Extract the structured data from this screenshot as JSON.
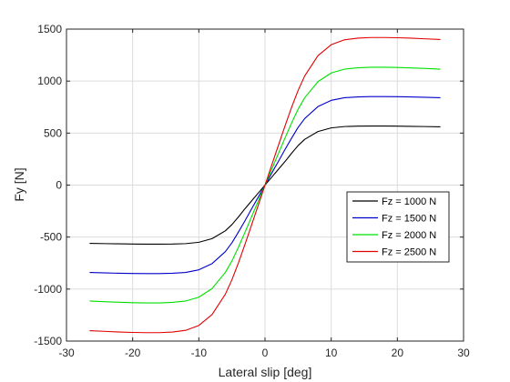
{
  "chart_data": {
    "type": "line",
    "xlabel": "Lateral slip [deg]",
    "ylabel": "Fy [N]",
    "xlim": [
      -30,
      30
    ],
    "ylim": [
      -1500,
      1500
    ],
    "xticks": [
      -30,
      -20,
      -10,
      0,
      10,
      20,
      30
    ],
    "yticks": [
      -1500,
      -1000,
      -500,
      0,
      500,
      1000,
      1500
    ],
    "xtick_labels": [
      "-30",
      "-20",
      "-10",
      "0",
      "10",
      "20",
      "30"
    ],
    "ytick_labels": [
      "-1500",
      "-1000",
      "-500",
      "0",
      "500",
      "1000",
      "1500"
    ],
    "grid": true,
    "legend_position": "right",
    "series": [
      {
        "name": "Fz = 1000 N",
        "color": "#000000",
        "x": [
          -26.5,
          -24,
          -22,
          -20,
          -18,
          -16,
          -14,
          -12,
          -10,
          -8,
          -6,
          -5,
          -4,
          -3,
          -2,
          -1,
          0,
          1,
          2,
          3,
          4,
          5,
          6,
          8,
          10,
          12,
          14,
          16,
          18,
          20,
          22,
          24,
          26.5
        ],
        "y": [
          -560,
          -563,
          -565,
          -567,
          -568,
          -568,
          -567,
          -563,
          -550,
          -515,
          -440,
          -380,
          -305,
          -225,
          -150,
          -75,
          0,
          75,
          150,
          225,
          305,
          380,
          440,
          515,
          550,
          563,
          567,
          568,
          568,
          567,
          565,
          563,
          560
        ]
      },
      {
        "name": "Fz = 1500 N",
        "color": "#0000cc",
        "x": [
          -26.5,
          -24,
          -22,
          -20,
          -18,
          -16,
          -14,
          -12,
          -10,
          -8,
          -6,
          -5,
          -4,
          -3,
          -2,
          -1,
          0,
          1,
          2,
          3,
          4,
          5,
          6,
          8,
          10,
          12,
          14,
          16,
          18,
          20,
          22,
          24,
          26.5
        ],
        "y": [
          -840,
          -845,
          -848,
          -850,
          -851,
          -851,
          -848,
          -840,
          -815,
          -755,
          -640,
          -555,
          -450,
          -340,
          -225,
          -113,
          0,
          113,
          225,
          340,
          450,
          555,
          640,
          755,
          815,
          840,
          848,
          851,
          851,
          850,
          848,
          845,
          840
        ]
      },
      {
        "name": "Fz = 2000 N",
        "color": "#00e000",
        "x": [
          -26.5,
          -24,
          -22,
          -20,
          -18,
          -16,
          -14,
          -12,
          -10,
          -8,
          -6,
          -5,
          -4,
          -3,
          -2,
          -1,
          0,
          1,
          2,
          3,
          4,
          5,
          6,
          8,
          10,
          12,
          14,
          16,
          18,
          20,
          22,
          24,
          26.5
        ],
        "y": [
          -1115,
          -1122,
          -1127,
          -1131,
          -1133,
          -1133,
          -1128,
          -1115,
          -1078,
          -995,
          -840,
          -730,
          -595,
          -450,
          -300,
          -150,
          0,
          150,
          300,
          450,
          595,
          730,
          840,
          995,
          1078,
          1115,
          1128,
          1133,
          1133,
          1131,
          1127,
          1122,
          1115
        ]
      },
      {
        "name": "Fz = 2500 N",
        "color": "#e00000",
        "x": [
          -26.5,
          -24,
          -22,
          -20,
          -18,
          -16,
          -14,
          -12,
          -10,
          -8,
          -6,
          -5,
          -4,
          -3,
          -2,
          -1,
          0,
          1,
          2,
          3,
          4,
          5,
          6,
          8,
          10,
          12,
          14,
          16,
          18,
          20,
          22,
          24,
          26.5
        ],
        "y": [
          -1400,
          -1407,
          -1413,
          -1417,
          -1419,
          -1419,
          -1413,
          -1397,
          -1350,
          -1245,
          -1050,
          -910,
          -745,
          -565,
          -378,
          -190,
          0,
          190,
          378,
          565,
          745,
          910,
          1050,
          1245,
          1350,
          1397,
          1413,
          1419,
          1419,
          1417,
          1413,
          1407,
          1400
        ]
      }
    ]
  }
}
